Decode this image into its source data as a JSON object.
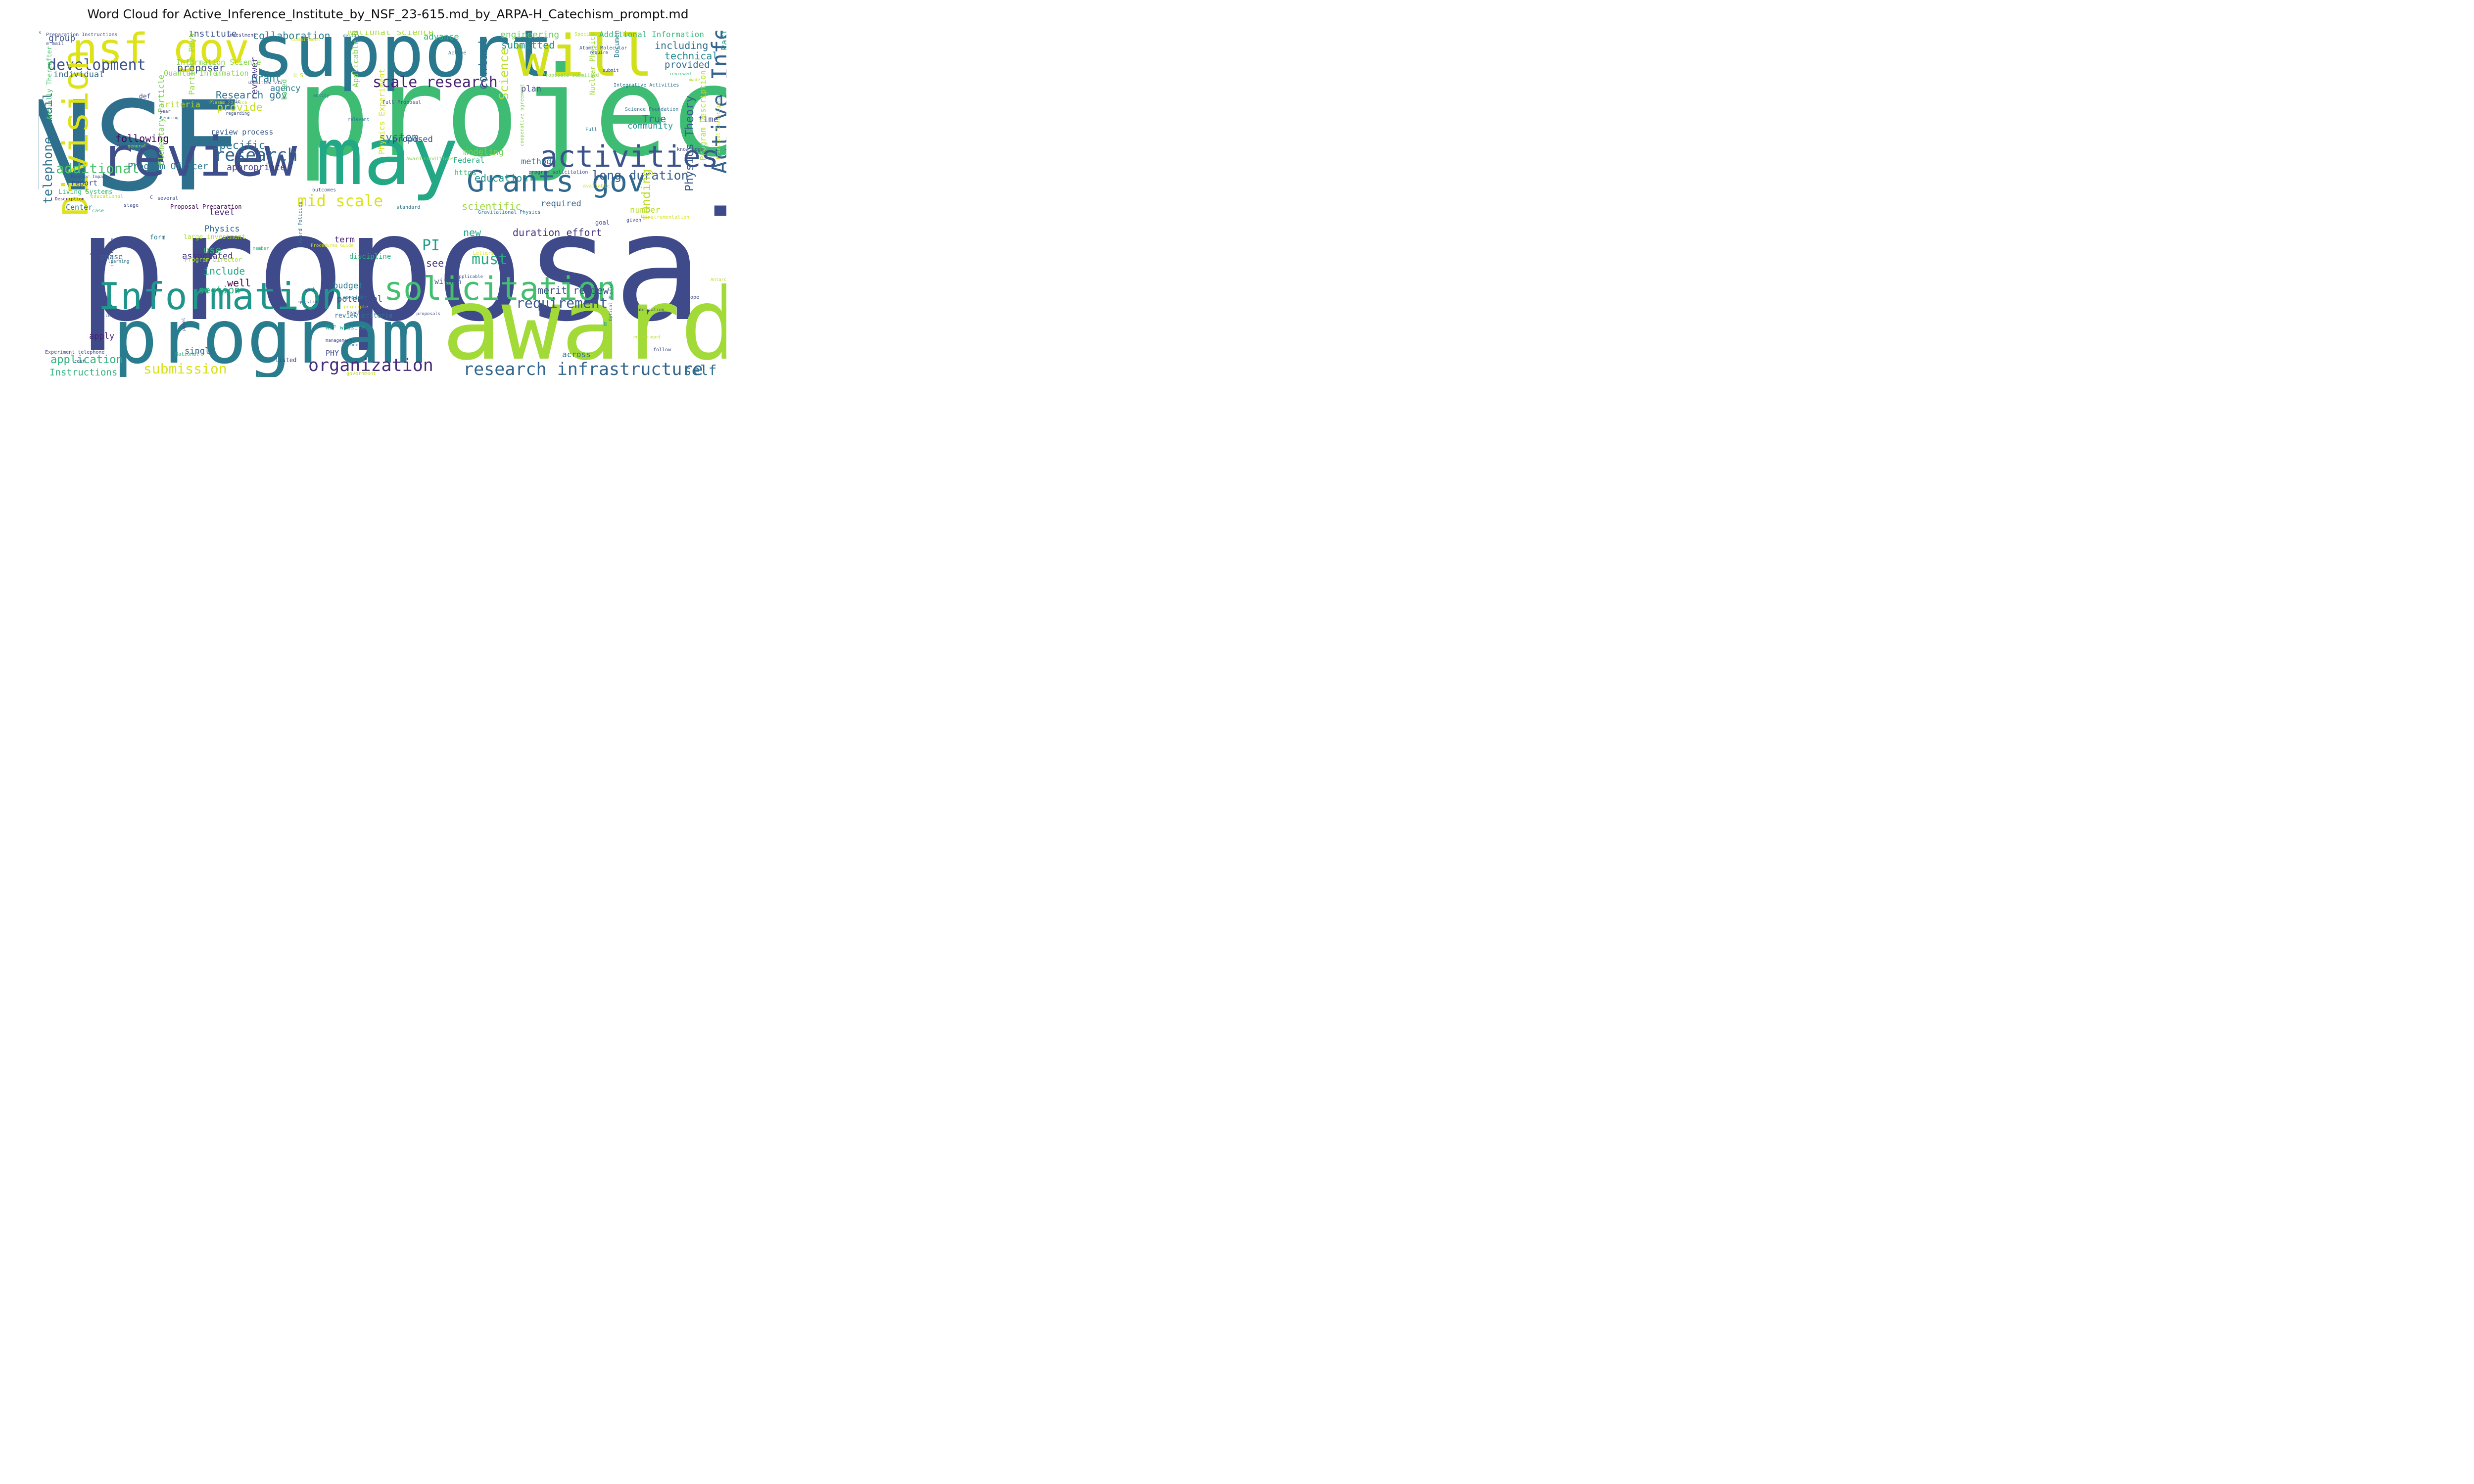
{
  "title": "Word Cloud for Active_Inference_Institute_by_NSF_23-615.md_by_ARPA-H_Catechism_prompt.md",
  "palette": "viridis",
  "background": "#ffffff",
  "words": [
    {
      "text": "proposal",
      "color": "#3e4a89",
      "vertical": false
    },
    {
      "text": "NSF",
      "color": "#2e6f8e",
      "vertical": false
    },
    {
      "text": "project",
      "color": "#3ebc74",
      "vertical": false
    },
    {
      "text": "award",
      "color": "#a2da37",
      "vertical": false
    },
    {
      "text": "program",
      "color": "#287c8e",
      "vertical": false
    },
    {
      "text": "support",
      "color": "#2a788e",
      "vertical": false
    },
    {
      "text": "will",
      "color": "#d0e11c",
      "vertical": false
    },
    {
      "text": "may",
      "color": "#22a884",
      "vertical": false
    },
    {
      "text": "review",
      "color": "#3d4e8a",
      "vertical": false
    },
    {
      "text": "nsf gov",
      "color": "#dde318",
      "vertical": false
    },
    {
      "text": "Information",
      "color": "#1f958b",
      "vertical": false
    },
    {
      "text": "solicitation",
      "color": "#44bf70",
      "vertical": false
    },
    {
      "text": "activities",
      "color": "#3b528b",
      "vertical": false
    },
    {
      "text": "Grants gov",
      "color": "#30698e",
      "vertical": false
    },
    {
      "text": "development",
      "color": "#3b528b",
      "vertical": false
    },
    {
      "text": "research infrastructure",
      "color": "#31668e",
      "vertical": false
    },
    {
      "text": "organization",
      "color": "#472c7a",
      "vertical": false
    },
    {
      "text": "Division",
      "color": "#dde318",
      "vertical": true
    },
    {
      "text": "Active Inference",
      "color": "#33628d",
      "vertical": true
    },
    {
      "text": "scale research",
      "color": "#482173",
      "vertical": false
    },
    {
      "text": "research",
      "color": "#33638d",
      "vertical": false
    },
    {
      "text": "mid scale",
      "color": "#dae319",
      "vertical": false
    },
    {
      "text": "telephone email",
      "color": "#2c728e",
      "vertical": true
    },
    {
      "text": "PI",
      "color": "#1f9e89",
      "vertical": false
    },
    {
      "text": "must",
      "color": "#25ab82",
      "vertical": false
    },
    {
      "text": "additional",
      "color": "#4ac16d",
      "vertical": false
    },
    {
      "text": "requirement",
      "color": "#38588c",
      "vertical": false
    },
    {
      "text": "submission",
      "color": "#d8e219",
      "vertical": false
    },
    {
      "text": "self",
      "color": "#2d708e",
      "vertical": false
    },
    {
      "text": "long duration",
      "color": "#365d8d",
      "vertical": false
    },
    {
      "text": "collaboration",
      "color": "#29798e",
      "vertical": false
    },
    {
      "text": "including",
      "color": "#2f6c8e",
      "vertical": false
    },
    {
      "text": "submitted",
      "color": "#21908d",
      "vertical": false
    },
    {
      "text": "technical",
      "color": "#23898e",
      "vertical": false
    },
    {
      "text": "duration effort",
      "color": "#46327e",
      "vertical": false
    },
    {
      "text": "merit review",
      "color": "#3c4f8a",
      "vertical": false
    },
    {
      "text": "Physics Theory",
      "color": "#375b8d",
      "vertical": true
    },
    {
      "text": "funding",
      "color": "#bddf26",
      "vertical": true
    },
    {
      "text": "application",
      "color": "#2db27d",
      "vertical": false
    },
    {
      "text": "Instructions",
      "color": "#2fb47c",
      "vertical": false
    },
    {
      "text": "section",
      "color": "#2ab07f",
      "vertical": false
    },
    {
      "text": "include",
      "color": "#22a785",
      "vertical": false
    },
    {
      "text": "provide",
      "color": "#c2df23",
      "vertical": false
    },
    {
      "text": "specific",
      "color": "#2c738e",
      "vertical": false
    },
    {
      "text": "system",
      "color": "#2a768e",
      "vertical": false
    },
    {
      "text": "contact",
      "color": "#2d718e",
      "vertical": true
    },
    {
      "text": "Science",
      "color": "#bade28",
      "vertical": true
    },
    {
      "text": "proposer",
      "color": "#3e4c8a",
      "vertical": false
    },
    {
      "text": "Grant",
      "color": "#27808e",
      "vertical": false
    },
    {
      "text": "Research gov",
      "color": "#2d718e",
      "vertical": false
    },
    {
      "text": "appropriate",
      "color": "#433e85",
      "vertical": false
    },
    {
      "text": "Program Officer",
      "color": "#2b758e",
      "vertical": false
    },
    {
      "text": "following",
      "color": "#440154",
      "vertical": false
    },
    {
      "text": "criteria",
      "color": "#b5de2b",
      "vertical": false
    },
    {
      "text": "associated",
      "color": "#46307e",
      "vertical": false
    },
    {
      "text": "use",
      "color": "#3aba76",
      "vertical": false
    },
    {
      "text": "well",
      "color": "#440154",
      "vertical": false
    },
    {
      "text": "budget",
      "color": "#2a788e",
      "vertical": false
    },
    {
      "text": "potential",
      "color": "#3f4889",
      "vertical": false
    },
    {
      "text": "see",
      "color": "#46337f",
      "vertical": false
    },
    {
      "text": "new",
      "color": "#22a884",
      "vertical": false
    },
    {
      "text": "scientific",
      "color": "#9bd93c",
      "vertical": false
    },
    {
      "text": "required",
      "color": "#33638d",
      "vertical": false
    },
    {
      "text": "education",
      "color": "#21918c",
      "vertical": false
    },
    {
      "text": "number",
      "color": "#b8de29",
      "vertical": false
    },
    {
      "text": "True",
      "color": "#2c718e",
      "vertical": false
    },
    {
      "text": "community",
      "color": "#20928c",
      "vertical": false
    },
    {
      "text": "time",
      "color": "#3e4a89",
      "vertical": false
    },
    {
      "text": "plan",
      "color": "#404688",
      "vertical": false
    },
    {
      "text": "method",
      "color": "#2c738e",
      "vertical": false
    },
    {
      "text": "modeling",
      "color": "#75d054",
      "vertical": false
    },
    {
      "text": "https",
      "color": "#3dbc74",
      "vertical": false
    },
    {
      "text": "Federal",
      "color": "#26ad81",
      "vertical": false
    },
    {
      "text": "proposed",
      "color": "#3f4788",
      "vertical": false
    },
    {
      "text": "reviewer",
      "color": "#443983",
      "vertical": true
    },
    {
      "text": "review process",
      "color": "#38588c",
      "vertical": false
    },
    {
      "text": "engineering",
      "color": "#6ccd5a",
      "vertical": false
    },
    {
      "text": "National Science",
      "color": "#a5db36",
      "vertical": false
    },
    {
      "text": "Additional Information",
      "color": "#35b779",
      "vertical": false
    },
    {
      "text": "provided",
      "color": "#2e6e8e",
      "vertical": false
    },
    {
      "text": "Institute",
      "color": "#39568c",
      "vertical": false
    },
    {
      "text": "group",
      "color": "#3b528b",
      "vertical": false
    },
    {
      "text": "individual",
      "color": "#31668e",
      "vertical": false
    },
    {
      "text": "Information Science",
      "color": "#84d44b",
      "vertical": false
    },
    {
      "text": "Quantum Information",
      "color": "#84d44b",
      "vertical": false
    },
    {
      "text": "advance",
      "color": "#2fb47c",
      "vertical": false
    },
    {
      "text": "agency",
      "color": "#2a788e",
      "vertical": false
    },
    {
      "text": "based",
      "color": "#4ec36b",
      "vertical": true
    },
    {
      "text": "Particle Physics",
      "color": "#95d840",
      "vertical": true
    },
    {
      "text": "Elementary Particle",
      "color": "#7ad151",
      "vertical": true
    },
    {
      "text": "Physics Experiment",
      "color": "#d2e21b",
      "vertical": true
    },
    {
      "text": "Applicable Deadline",
      "color": "#7ad151",
      "vertical": true
    },
    {
      "text": "Nuclear Physics",
      "color": "#9fda3a",
      "vertical": true
    },
    {
      "text": "Particle Astrophysics",
      "color": "#21918c",
      "vertical": true
    },
    {
      "text": "Program Description",
      "color": "#b5de2b",
      "vertical": true
    },
    {
      "text": "Physics",
      "color": "#31688e",
      "vertical": false
    },
    {
      "text": "level",
      "color": "#482475",
      "vertical": false
    },
    {
      "text": "term",
      "color": "#482475",
      "vertical": false
    },
    {
      "text": "discipline",
      "color": "#2db27d",
      "vertical": false
    },
    {
      "text": "phase",
      "color": "#355f8d",
      "vertical": false
    },
    {
      "text": "within",
      "color": "#3b528b",
      "vertical": false
    },
    {
      "text": "apply",
      "color": "#482173",
      "vertical": false
    },
    {
      "text": "single",
      "color": "#31688e",
      "vertical": false
    },
    {
      "text": "PHY",
      "color": "#3e4989",
      "vertical": false
    },
    {
      "text": "across",
      "color": "#2e6f8e",
      "vertical": false
    },
    {
      "text": "report",
      "color": "#3e4a89",
      "vertical": false
    },
    {
      "text": "Center",
      "color": "#2a778e",
      "vertical": false
    },
    {
      "text": "Annually Thereafter",
      "color": "#4ac16d",
      "vertical": true
    },
    {
      "text": "Living Systems",
      "color": "#35b779",
      "vertical": false
    },
    {
      "text": "large investment",
      "color": "#b2dd2d",
      "vertical": false
    },
    {
      "text": "Program Director",
      "color": "#a8db34",
      "vertical": false
    },
    {
      "text": "Proposal Preparation",
      "color": "#440154",
      "vertical": false
    },
    {
      "text": "review criteria",
      "color": "#2a778e",
      "vertical": false
    },
    {
      "text": "NSF website",
      "color": "#1fa188",
      "vertical": false
    },
    {
      "text": "Preparation Instructions",
      "color": "#3e4a89",
      "vertical": false
    },
    {
      "text": "e mail",
      "color": "#3e4a89",
      "vertical": false
    },
    {
      "text": "investment",
      "color": "#414487",
      "vertical": false
    },
    {
      "text": "commitment",
      "color": "#d8e219",
      "vertical": false
    },
    {
      "text": "design",
      "color": "#2a788e",
      "vertical": false
    },
    {
      "text": "Special",
      "color": "#b5de2b",
      "vertical": false
    },
    {
      "text": "risk",
      "color": "#b5de2b",
      "vertical": false
    },
    {
      "text": "Atomic Molecular",
      "color": "#39568c",
      "vertical": false
    },
    {
      "text": "Active",
      "color": "#2c728e",
      "vertical": false
    },
    {
      "text": "require",
      "color": "#3b528b",
      "vertical": false
    },
    {
      "text": "Document",
      "color": "#2a788e",
      "vertical": true
    },
    {
      "text": "submit",
      "color": "#3e4a89",
      "vertical": false
    },
    {
      "text": "reviewed",
      "color": "#2fb47c",
      "vertical": false
    },
    {
      "text": "made",
      "color": "#b5de2b",
      "vertical": false
    },
    {
      "text": "Proposals submitted",
      "color": "#84d44b",
      "vertical": false
    },
    {
      "text": "U S",
      "color": "#b5de2b",
      "vertical": false
    },
    {
      "text": "Act",
      "color": "#84d44b",
      "vertical": false
    },
    {
      "text": "submitted via",
      "color": "#3b528b",
      "vertical": false
    },
    {
      "text": "entity",
      "color": "#2a788e",
      "vertical": false
    },
    {
      "text": "Full Proposal",
      "color": "#3e4a89",
      "vertical": false
    },
    {
      "text": "Integrative Activities",
      "color": "#2c728e",
      "vertical": false
    },
    {
      "text": "Science Foundation",
      "color": "#2c728e",
      "vertical": false
    },
    {
      "text": "Full",
      "color": "#2a788e",
      "vertical": false
    },
    {
      "text": "mission",
      "color": "#3e4a89",
      "vertical": false
    },
    {
      "text": "knowledge",
      "color": "#414487",
      "vertical": false
    },
    {
      "text": "Principal Investigator",
      "color": "#d8e219",
      "vertical": true
    },
    {
      "text": "cooperative agreement",
      "color": "#84d44b",
      "vertical": true
    },
    {
      "text": "program solicitation",
      "color": "#3e4a89",
      "vertical": false
    },
    {
      "text": "available",
      "color": "#d8e219",
      "vertical": false
    },
    {
      "text": "relevant",
      "color": "#2a788e",
      "vertical": false
    },
    {
      "text": "Award Conditions",
      "color": "#84d44b",
      "vertical": false
    },
    {
      "text": "def",
      "color": "#3e4a89",
      "vertical": false
    },
    {
      "text": "Plasma Physics",
      "color": "#b5de2b",
      "vertical": false
    },
    {
      "text": "public",
      "color": "#3b528b",
      "vertical": false
    },
    {
      "text": "year",
      "color": "#3e4a89",
      "vertical": false
    },
    {
      "text": "regarding",
      "color": "#3b528b",
      "vertical": false
    },
    {
      "text": "Pending",
      "color": "#2c728e",
      "vertical": false
    },
    {
      "text": "general",
      "color": "#b5de2b",
      "vertical": false
    },
    {
      "text": "aii",
      "color": "#3e4a89",
      "vertical": false
    },
    {
      "text": "Broader Impacts",
      "color": "#3b528b",
      "vertical": false
    },
    {
      "text": "Description",
      "color": "#440154",
      "vertical": false
    },
    {
      "text": "educational",
      "color": "#b5de2b",
      "vertical": false
    },
    {
      "text": "stage",
      "color": "#3e4a89",
      "vertical": false
    },
    {
      "text": "case",
      "color": "#2fb47c",
      "vertical": false
    },
    {
      "text": "outcomes",
      "color": "#3b528b",
      "vertical": false
    },
    {
      "text": "standard",
      "color": "#2a788e",
      "vertical": false
    },
    {
      "text": "Gravitational Physics",
      "color": "#2c728e",
      "vertical": false
    },
    {
      "text": "instrumentation",
      "color": "#d8e219",
      "vertical": false
    },
    {
      "text": "given",
      "color": "#3e4a89",
      "vertical": false
    },
    {
      "text": "goal",
      "color": "#3e4a89",
      "vertical": false
    },
    {
      "text": "form",
      "color": "#2a788e",
      "vertical": false
    },
    {
      "text": "member",
      "color": "#2fb47c",
      "vertical": false
    },
    {
      "text": "Procedures Guide",
      "color": "#d8e219",
      "vertical": false
    },
    {
      "text": "used",
      "color": "#3e4a89",
      "vertical": false
    },
    {
      "text": "learning",
      "color": "#2a788e",
      "vertical": false
    },
    {
      "text": "Award Policies",
      "color": "#2c728e",
      "vertical": true
    },
    {
      "text": "institution",
      "color": "#3b528b",
      "vertical": true
    },
    {
      "text": "current",
      "color": "#3e4a89",
      "vertical": false
    },
    {
      "text": "question",
      "color": "#3e4a89",
      "vertical": false
    },
    {
      "text": "work",
      "color": "#3e4a89",
      "vertical": false
    },
    {
      "text": "consider",
      "color": "#2a788e",
      "vertical": false
    },
    {
      "text": "principle",
      "color": "#d8e219",
      "vertical": false
    },
    {
      "text": "Deadline",
      "color": "#3e4a89",
      "vertical": false
    },
    {
      "text": "Applicable",
      "color": "#3b528b",
      "vertical": false
    },
    {
      "text": "Letters",
      "color": "#d8e219",
      "vertical": false
    },
    {
      "text": "Antarctic",
      "color": "#b5de2b",
      "vertical": false
    },
    {
      "text": "scope",
      "color": "#3e4a89",
      "vertical": false
    },
    {
      "text": "fabrication",
      "color": "#3e4a89",
      "vertical": false
    },
    {
      "text": "renewal proposals",
      "color": "#3e4a89",
      "vertical": false
    },
    {
      "text": "management",
      "color": "#3e4a89",
      "vertical": false
    },
    {
      "text": "one",
      "color": "#2a788e",
      "vertical": false
    },
    {
      "text": "panel",
      "color": "#3e4a89",
      "vertical": true
    },
    {
      "text": "encouraged",
      "color": "#b5de2b",
      "vertical": false
    },
    {
      "text": "follow",
      "color": "#3e4a89",
      "vertical": false
    },
    {
      "text": "B",
      "color": "#2fb47c",
      "vertical": false
    },
    {
      "text": "Optical Physics",
      "color": "#2a788e",
      "vertical": true
    },
    {
      "text": "Experiment telephone",
      "color": "#3e4a89",
      "vertical": false
    },
    {
      "text": "cost",
      "color": "#3e4a89",
      "vertical": false
    },
    {
      "text": "National",
      "color": "#2fb47c",
      "vertical": false
    },
    {
      "text": "listed",
      "color": "#3e4a89",
      "vertical": false
    },
    {
      "text": "U",
      "color": "#2fb47c",
      "vertical": false
    },
    {
      "text": "government",
      "color": "#b5de2b",
      "vertical": false
    },
    {
      "text": "several",
      "color": "#3e4a89",
      "vertical": false
    },
    {
      "text": "C",
      "color": "#3e4a89",
      "vertical": false
    },
    {
      "text": "D",
      "color": "#3e4a89",
      "vertical": false
    },
    {
      "text": "s",
      "color": "#2c728e",
      "vertical": false
    }
  ]
}
